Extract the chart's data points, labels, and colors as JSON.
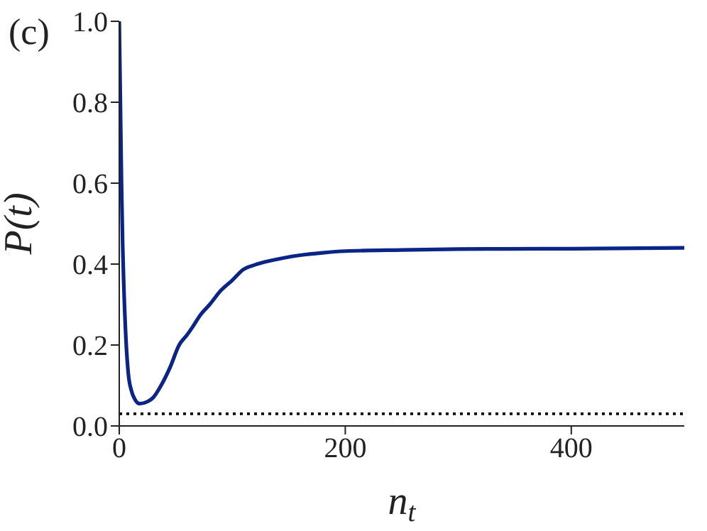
{
  "chart_data": {
    "type": "line",
    "xlabel": "n$_{t}$",
    "ylabel": "P(t)",
    "annotations": [
      "(c)"
    ],
    "x": [
      0,
      1,
      2,
      3,
      4,
      6,
      8,
      11,
      14,
      18,
      25,
      30,
      37,
      45,
      53,
      60,
      65,
      72,
      80,
      90,
      100,
      110,
      120,
      130,
      145,
      160,
      180,
      200,
      250,
      300,
      400,
      500
    ],
    "series": [
      {
        "color": "#0b2586",
        "values": [
          1.0,
          0.8,
          0.6,
          0.45,
          0.35,
          0.21,
          0.13,
          0.085,
          0.065,
          0.055,
          0.06,
          0.07,
          0.1,
          0.145,
          0.2,
          0.225,
          0.245,
          0.275,
          0.3,
          0.335,
          0.36,
          0.387,
          0.398,
          0.406,
          0.415,
          0.422,
          0.428,
          0.432,
          0.435,
          0.437,
          0.438,
          0.44
        ]
      }
    ],
    "xlim": [
      0,
      500
    ],
    "xticks": [
      0,
      200,
      400
    ],
    "ylim": [
      0,
      1.0
    ],
    "yticks": [
      {
        "value": 0,
        "label": "0.0"
      },
      {
        "value": 0.2,
        "label": "0.2"
      },
      {
        "value": 0.4,
        "label": "0.4"
      },
      {
        "value": 0.6,
        "label": "0.6"
      },
      {
        "value": 0.8,
        "label": "0.8"
      },
      {
        "value": 1.0,
        "label": "1.0"
      }
    ],
    "ref_lines": [
      {
        "axis": "y",
        "value": 0.03,
        "color": "#000000",
        "line_style": "dotted"
      }
    ],
    "grid": false,
    "legend": false,
    "marker": "none",
    "line_style": "solid"
  }
}
